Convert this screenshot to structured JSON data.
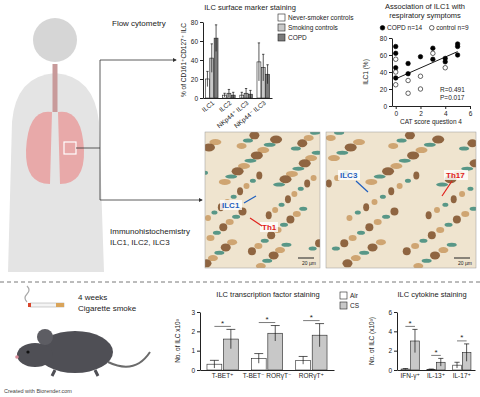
{
  "texts": {
    "flow": "Flow cytometry",
    "ihc": "Immunohistochemistry",
    "ihc_sub": "ILC1, ILC2, ILC3",
    "weeks": "4 weeks",
    "smoke": "Cigarette smoke",
    "credit": "Created with Biorender.com"
  },
  "images": [
    {
      "labels": [
        "ILC1",
        "Th1"
      ],
      "scale": "20 µm"
    },
    {
      "labels": [
        "ILC3",
        "Th17"
      ],
      "scale": "20 µm"
    }
  ],
  "chart_data": [
    {
      "type": "bar",
      "title": "ILC surface marker staining",
      "ylabel": "% of CD161⁺CD127⁺ ILC",
      "categories": [
        "ILC1",
        "ILC2",
        "NKp44⁺ ILC3",
        "NKp44⁻ ILC3"
      ],
      "series": [
        {
          "name": "Never-smoker controls",
          "color": "#ffffff",
          "values": [
            20,
            3,
            3,
            38
          ],
          "errors": [
            8,
            2,
            3,
            20
          ]
        },
        {
          "name": "Smoking controls",
          "color": "#c8c8c8",
          "values": [
            42,
            5,
            5,
            32
          ],
          "errors": [
            15,
            4,
            5,
            14
          ]
        },
        {
          "name": "COPD",
          "color": "#7a7a7a",
          "values": [
            63,
            3,
            4,
            25
          ],
          "errors": [
            14,
            3,
            4,
            10
          ]
        }
      ],
      "ylim": [
        0,
        80
      ],
      "yticks": [
        0,
        20,
        40,
        60,
        80
      ],
      "legend": "top-right"
    },
    {
      "type": "scatter",
      "title": [
        "Association of ILC1 with",
        "respiratory symptoms"
      ],
      "xlabel": "CAT score question 4",
      "ylabel": "ILC1 (%)",
      "series": [
        {
          "name": "COPD n=14",
          "color": "#000000",
          "marker": "circle",
          "x": [
            0,
            0,
            0,
            0,
            1,
            1,
            2,
            3,
            3,
            4,
            4,
            5,
            5,
            5
          ],
          "values": [
            33,
            45,
            62,
            70,
            38,
            50,
            58,
            55,
            68,
            52,
            56,
            60,
            70,
            73
          ]
        },
        {
          "name": "control n=9",
          "color": "#ffffff",
          "marker": "circle",
          "x": [
            0,
            0,
            0,
            1,
            1,
            2,
            2,
            3,
            4
          ],
          "values": [
            25,
            40,
            55,
            15,
            30,
            20,
            35,
            62,
            45
          ]
        },
        {
          "type": "line",
          "color": "#000000",
          "line_style": "solid",
          "x": [
            0,
            5
          ],
          "values": [
            32,
            64
          ]
        }
      ],
      "xlim": [
        -0.3,
        6
      ],
      "xticks": [
        0,
        2,
        4,
        6
      ],
      "ylim": [
        0,
        80
      ],
      "yticks": [
        0,
        20,
        40,
        60,
        80
      ],
      "annotations": [
        "R=0.491",
        "P=0.017"
      ],
      "legend": "top"
    },
    {
      "type": "bar",
      "title": "ILC transcription factor staining",
      "ylabel": "No. of ILC x10³",
      "categories": [
        "T-BET⁺",
        "T-BET⁻ RORγT⁻",
        "RORγT⁺"
      ],
      "series": [
        {
          "name": "Air",
          "color": "#ffffff",
          "values": [
            0.3,
            0.6,
            0.5
          ],
          "errors": [
            0.2,
            0.25,
            0.2
          ]
        },
        {
          "name": "CS",
          "color": "#c8c8c8",
          "values": [
            1.6,
            1.9,
            1.8
          ],
          "errors": [
            0.5,
            0.4,
            0.6
          ]
        }
      ],
      "ylim": [
        0,
        3
      ],
      "yticks": [
        0,
        1,
        2,
        3
      ],
      "significance": [
        "*",
        "*",
        "*"
      ],
      "legend": "top-right"
    },
    {
      "type": "bar",
      "title": "ILC cytokine staining",
      "ylabel": "No. of ILC (x10³)",
      "categories": [
        "IFN-γ⁺",
        "IL-13⁺",
        "IL-17⁺"
      ],
      "series": [
        {
          "color": "#ffffff",
          "values": [
            0.1,
            0.05,
            0.5
          ],
          "errors": [
            0.05,
            0.05,
            0.3
          ]
        },
        {
          "color": "#c8c8c8",
          "values": [
            3.0,
            0.8,
            1.8
          ],
          "errors": [
            1.2,
            0.4,
            0.9
          ]
        }
      ],
      "ylim": [
        0,
        6
      ],
      "yticks": [
        0,
        2,
        4,
        6
      ],
      "significance": [
        "*",
        "*",
        "*"
      ]
    }
  ]
}
